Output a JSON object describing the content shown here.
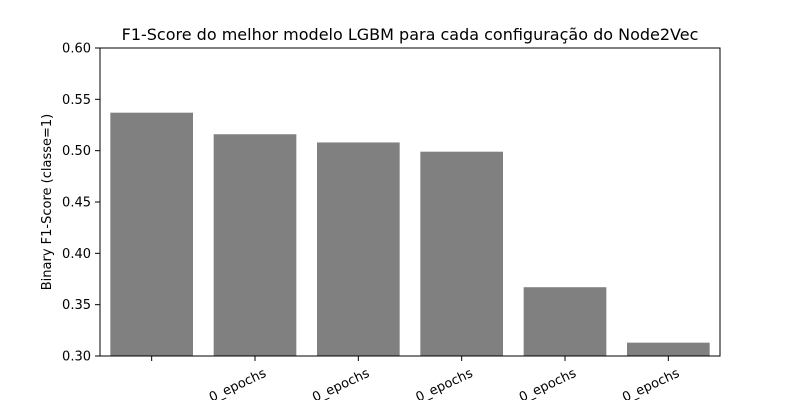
{
  "chart_data": {
    "type": "bar",
    "title": "F1-Score do melhor modelo LGBM para cada configuração do Node2Vec",
    "xlabel": "",
    "ylabel": "Binary F1-Score (classe=1)",
    "ylim": [
      0.3,
      0.6
    ],
    "yticks": [
      "0.30",
      "0.35",
      "0.40",
      "0.45",
      "0.50",
      "0.55",
      "0.60"
    ],
    "categories": [
      "",
      "0_epochs",
      "0_epochs",
      "0_epochs",
      "0_epochs",
      "0_epochs"
    ],
    "values": [
      0.537,
      0.516,
      0.508,
      0.499,
      0.367,
      0.313
    ],
    "bar_color": "#808080",
    "grid": false,
    "legend": "none"
  }
}
